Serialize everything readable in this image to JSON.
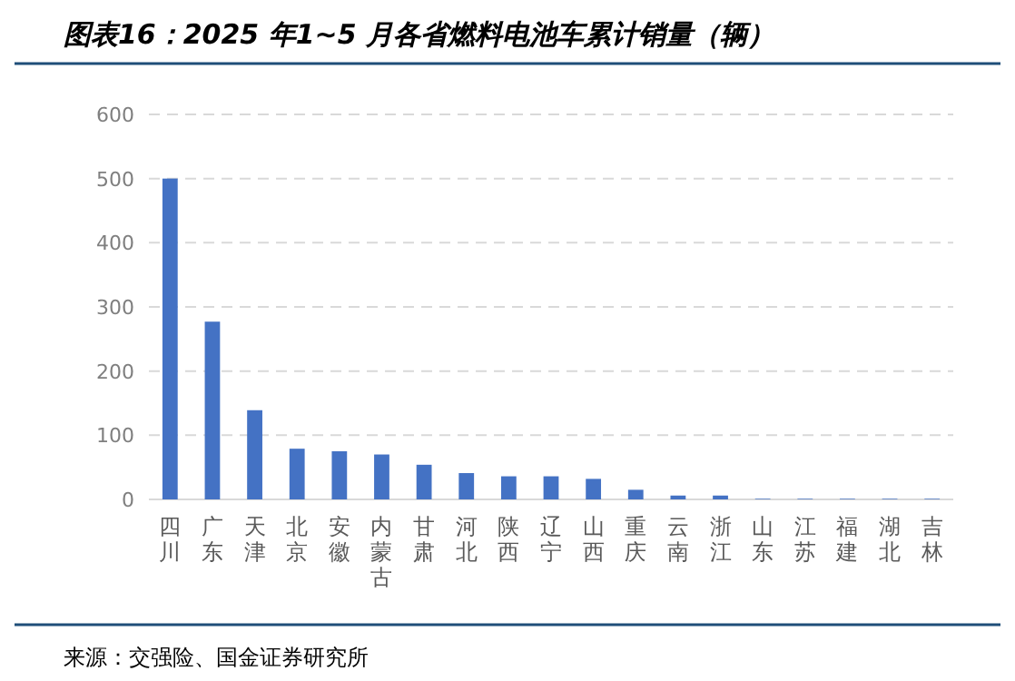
{
  "chart_data": {
    "type": "bar",
    "title": "图表16：2025 年1~5 月各省燃料电池车累计销量（辆）",
    "categories": [
      "四川",
      "广东",
      "天津",
      "北京",
      "安徽",
      "内蒙古",
      "甘肃",
      "河北",
      "陕西",
      "辽宁",
      "山西",
      "重庆",
      "云南",
      "浙江",
      "山东",
      "江苏",
      "福建",
      "湖北",
      "吉林"
    ],
    "values": [
      500,
      277,
      139,
      79,
      75,
      70,
      54,
      41,
      36,
      36,
      32,
      15,
      6,
      6,
      1,
      1,
      1,
      1,
      1
    ],
    "color": "#4472c4",
    "ylim": [
      0,
      600
    ],
    "yticks": [
      0,
      100,
      200,
      300,
      400,
      500,
      600
    ],
    "grid": "y",
    "annotations": [
      "来源：交强险、国金证券研究所"
    ]
  }
}
